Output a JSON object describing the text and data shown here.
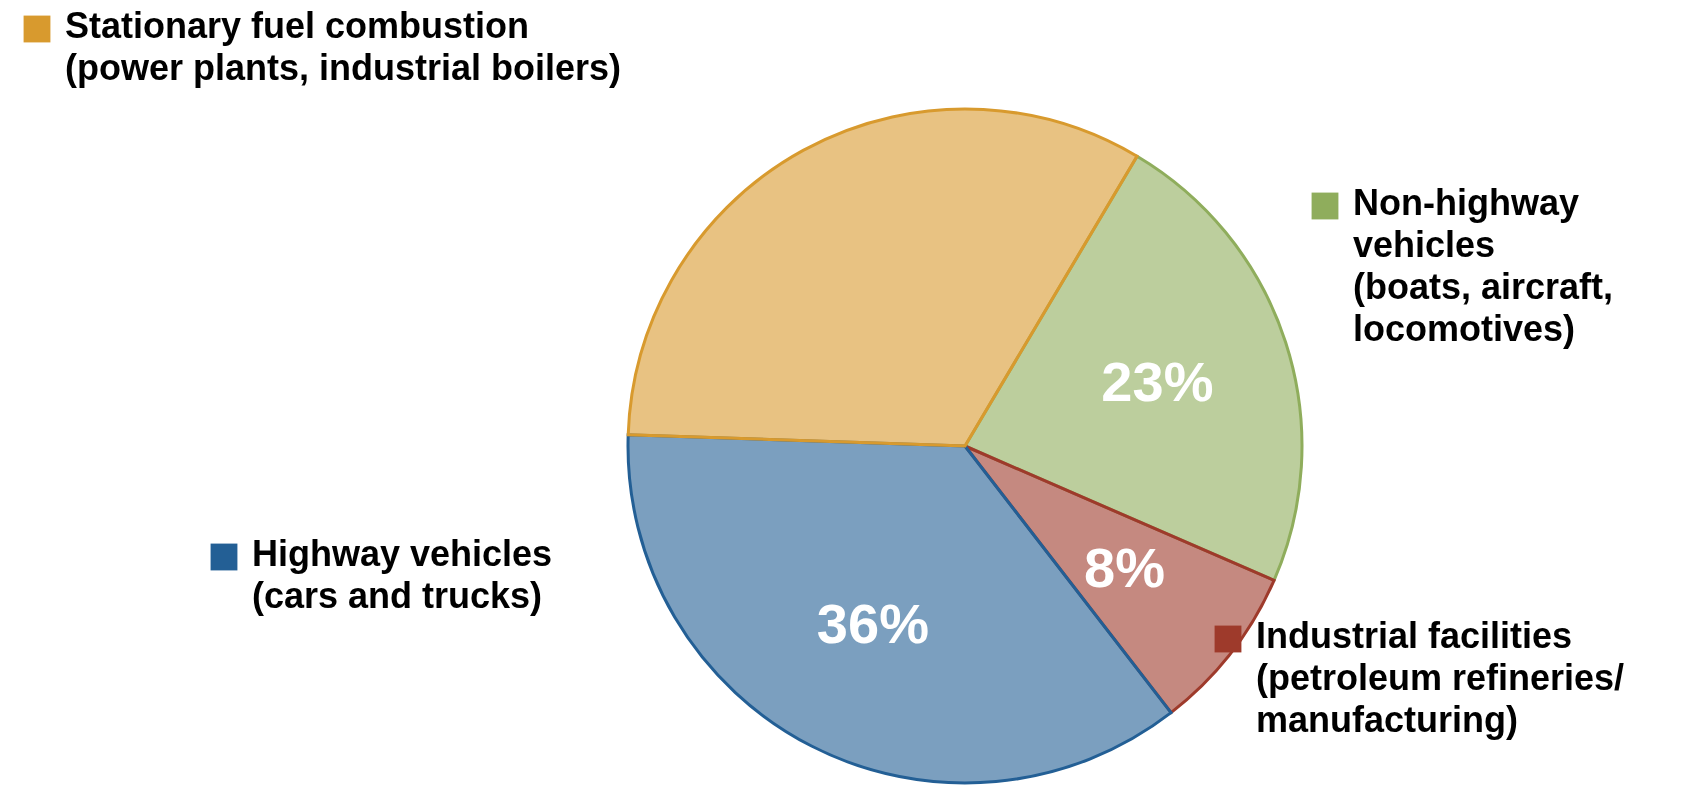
{
  "chart_data": {
    "type": "pie",
    "categories": [
      "Non-highway\nvehicles\n(boats, aircraft,\nlocomotives)",
      "Industrial facilities\n(petroleum refineries/\nmanufacturing)",
      "Highway vehicles\n(cars and trucks)",
      "Stationary fuel combustion\n(power plants, industrial boilers)"
    ],
    "values": [
      23,
      8,
      36,
      33
    ],
    "colors": [
      "#8fad5c",
      "#9e3a2b",
      "#235f95",
      "#d89a2e"
    ],
    "value_labels": [
      "23%",
      "8%",
      "36%",
      null
    ],
    "legend": "top left"
  }
}
